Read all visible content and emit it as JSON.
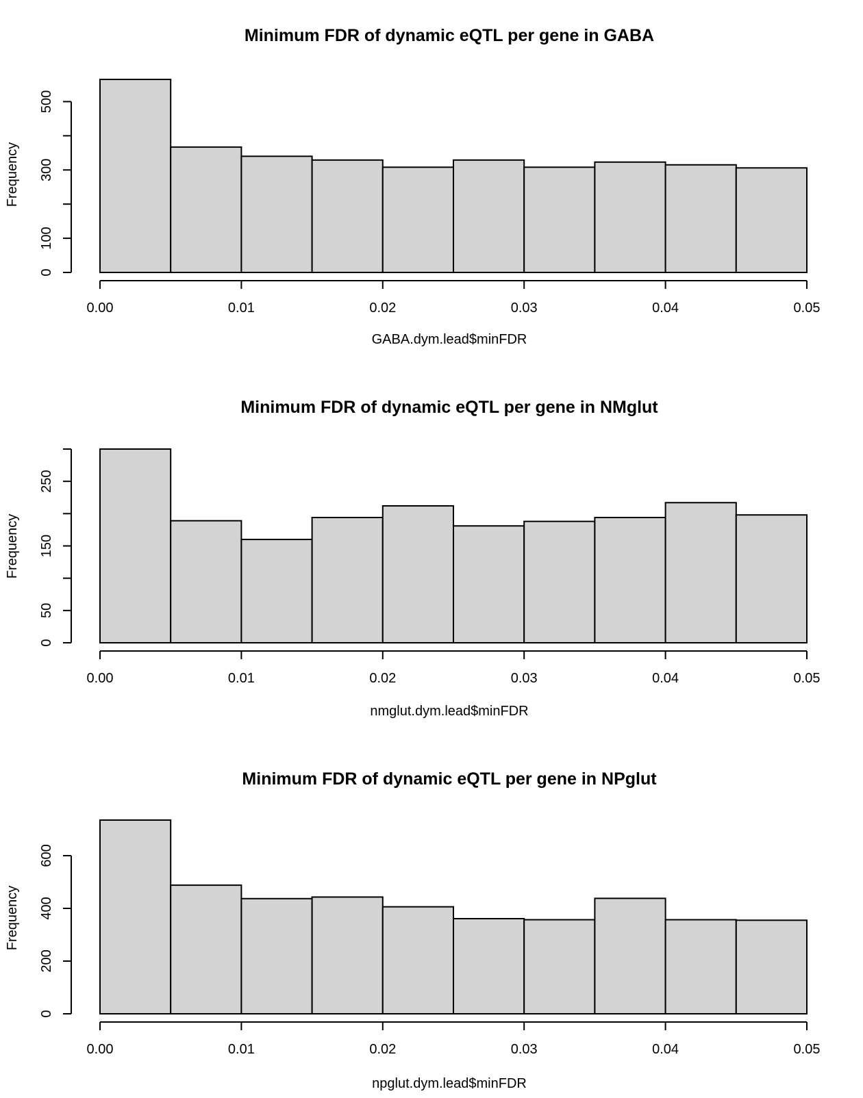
{
  "colors": {
    "bar_fill": "#d3d3d3",
    "bar_stroke": "#000000",
    "axis": "#000000",
    "background": "#ffffff"
  },
  "chart_data": [
    {
      "type": "bar",
      "title": "Minimum FDR of dynamic eQTL per gene in GABA",
      "xlabel": "GABA.dym.lead$minFDR",
      "ylabel": "Frequency",
      "bin_edges": [
        0.0,
        0.005,
        0.01,
        0.015,
        0.02,
        0.025,
        0.03,
        0.035,
        0.04,
        0.045,
        0.05
      ],
      "values": [
        565,
        367,
        340,
        329,
        308,
        329,
        308,
        323,
        315,
        306
      ],
      "xlim": [
        0.0,
        0.05
      ],
      "ylim": [
        0,
        565
      ],
      "x_ticks": [
        0.0,
        0.01,
        0.02,
        0.03,
        0.04,
        0.05
      ],
      "x_tick_labels": [
        "0.00",
        "0.01",
        "0.02",
        "0.03",
        "0.04",
        "0.05"
      ],
      "y_ticks": [
        0,
        100,
        200,
        300,
        400,
        500
      ],
      "y_tick_labels": [
        "0",
        "100",
        "",
        "300",
        "",
        "500"
      ],
      "grid": false,
      "legend": "none"
    },
    {
      "type": "bar",
      "title": "Minimum FDR of dynamic eQTL per gene in NMglut",
      "xlabel": "nmglut.dym.lead$minFDR",
      "ylabel": "Frequency",
      "bin_edges": [
        0.0,
        0.005,
        0.01,
        0.015,
        0.02,
        0.025,
        0.03,
        0.035,
        0.04,
        0.045,
        0.05
      ],
      "values": [
        300,
        189,
        160,
        194,
        212,
        181,
        188,
        194,
        217,
        198
      ],
      "xlim": [
        0.0,
        0.05
      ],
      "ylim": [
        0,
        300
      ],
      "x_ticks": [
        0.0,
        0.01,
        0.02,
        0.03,
        0.04,
        0.05
      ],
      "x_tick_labels": [
        "0.00",
        "0.01",
        "0.02",
        "0.03",
        "0.04",
        "0.05"
      ],
      "y_ticks": [
        0,
        50,
        100,
        150,
        200,
        250,
        300
      ],
      "y_tick_labels": [
        "0",
        "50",
        "",
        "150",
        "",
        "250",
        ""
      ],
      "grid": false,
      "legend": "none"
    },
    {
      "type": "bar",
      "title": "Minimum FDR of dynamic eQTL per gene in NPglut",
      "xlabel": "npglut.dym.lead$minFDR",
      "ylabel": "Frequency",
      "bin_edges": [
        0.0,
        0.005,
        0.01,
        0.015,
        0.02,
        0.025,
        0.03,
        0.035,
        0.04,
        0.045,
        0.05
      ],
      "values": [
        735,
        488,
        437,
        443,
        406,
        361,
        357,
        438,
        357,
        355
      ],
      "xlim": [
        0.0,
        0.05
      ],
      "ylim": [
        0,
        735
      ],
      "x_ticks": [
        0.0,
        0.01,
        0.02,
        0.03,
        0.04,
        0.05
      ],
      "x_tick_labels": [
        "0.00",
        "0.01",
        "0.02",
        "0.03",
        "0.04",
        "0.05"
      ],
      "y_ticks": [
        0,
        200,
        400,
        600
      ],
      "y_tick_labels": [
        "0",
        "200",
        "400",
        "600"
      ],
      "grid": false,
      "legend": "none"
    }
  ]
}
